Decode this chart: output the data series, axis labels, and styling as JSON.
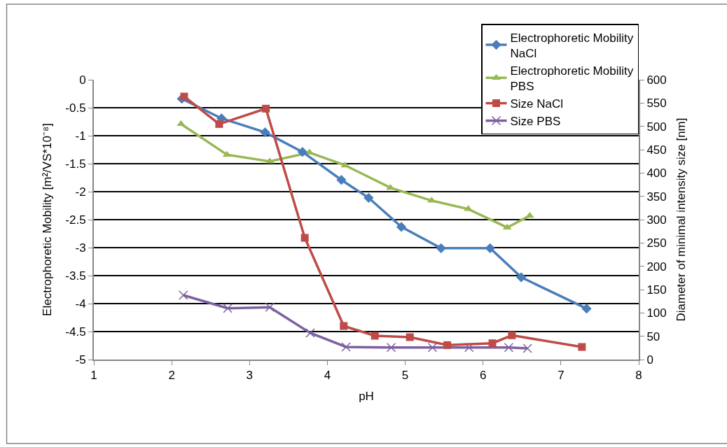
{
  "chart_data": {
    "type": "line",
    "xlabel": "pH",
    "ylabel": "Electrophoretic Mobility [m²/VS*10⁻⁸]",
    "y2label": "Diameter of minimal intensity size [nm]",
    "xlim": [
      1,
      8
    ],
    "xticks": [
      1,
      2,
      3,
      4,
      5,
      6,
      7,
      8
    ],
    "ylim": [
      -5,
      0
    ],
    "yticks": [
      -5,
      -4.5,
      -4,
      -3.5,
      -3,
      -2.5,
      -2,
      -1.5,
      -1,
      -0.5,
      0
    ],
    "y2lim": [
      0,
      600
    ],
    "y2ticks": [
      0,
      50,
      100,
      150,
      200,
      250,
      300,
      350,
      400,
      450,
      500,
      550,
      600
    ],
    "grid": "y",
    "legend": "top right",
    "line_style": "solid",
    "series": [
      {
        "name": "Electrophoretic Mobility NaCl",
        "color": "#4a7ebb",
        "marker": "diamond",
        "x": [
          2.13,
          2.64,
          3.2,
          3.68,
          4.18,
          4.53,
          4.95,
          5.46,
          6.09,
          6.49,
          7.33
        ],
        "values": [
          -0.34,
          -0.69,
          -0.94,
          -1.29,
          -1.79,
          -2.11,
          -2.63,
          -3.01,
          -3.01,
          -3.53,
          -4.09
        ]
      },
      {
        "name": "Electrophoretic Mobility PBS",
        "color": "#98b954",
        "marker": "triangle",
        "x": [
          2.12,
          2.71,
          3.26,
          3.77,
          4.23,
          4.81,
          5.34,
          5.81,
          6.31,
          6.6
        ],
        "values": [
          -0.79,
          -1.34,
          -1.46,
          -1.3,
          -1.53,
          -1.93,
          -2.16,
          -2.31,
          -2.64,
          -2.43
        ]
      },
      {
        "name": "Size NaCl",
        "color": "#be4b48",
        "marker": "square",
        "axis": "y2",
        "x": [
          2.16,
          2.61,
          3.21,
          3.71,
          4.21,
          4.61,
          5.06,
          5.54,
          6.12,
          6.37,
          7.27
        ],
        "values": [
          564,
          505,
          538,
          261,
          72,
          51,
          48,
          31,
          35,
          52,
          27
        ]
      },
      {
        "name": "Size PBS",
        "color": "#7d60a0",
        "marker": "cross",
        "axis": "y2",
        "x": [
          2.15,
          2.72,
          3.26,
          3.78,
          4.24,
          4.82,
          5.35,
          5.82,
          6.33,
          6.57
        ],
        "values": [
          138,
          110,
          112,
          57,
          27,
          26,
          26,
          26,
          26,
          24
        ]
      }
    ]
  }
}
